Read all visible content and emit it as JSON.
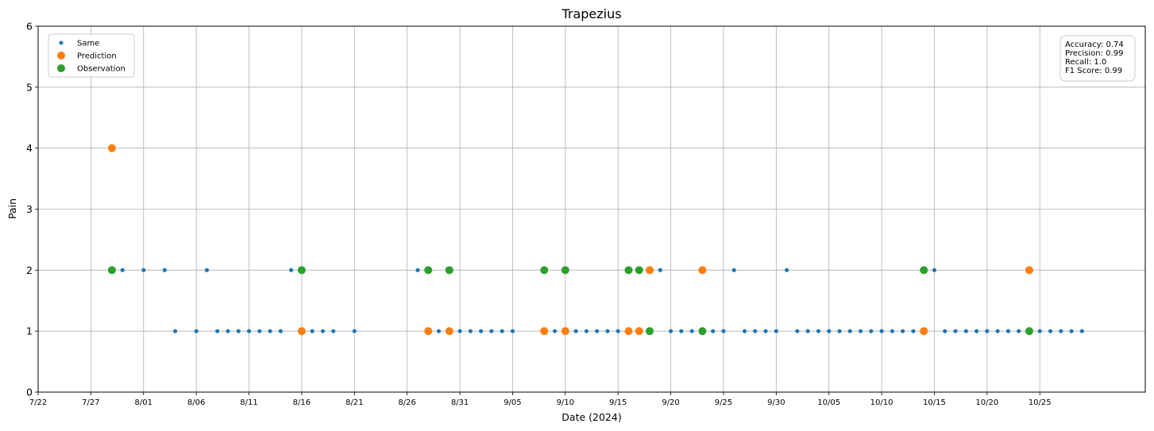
{
  "chart_data": {
    "type": "scatter",
    "title": "Trapezius",
    "xlabel": "Date (2024)",
    "ylabel": "Pain",
    "ylim": [
      0,
      6
    ],
    "yticks": [
      "0",
      "1",
      "2",
      "3",
      "4",
      "5",
      "6"
    ],
    "xlim": [
      "2024-07-22",
      "2024-11-04"
    ],
    "xticks": [
      "7/22",
      "7/27",
      "8/01",
      "8/06",
      "8/11",
      "8/16",
      "8/21",
      "8/26",
      "8/31",
      "9/05",
      "9/10",
      "9/15",
      "9/20",
      "9/25",
      "9/30",
      "10/05",
      "10/10",
      "10/15",
      "10/20",
      "10/25"
    ],
    "grid": true,
    "legend_position": "top-left",
    "metrics_box_position": "top-right",
    "metrics": [
      "Accuracy: 0.74",
      "Precision: 0.99",
      "Recall: 1.0",
      "F1 Score: 0.99"
    ],
    "series": [
      {
        "name": "Same",
        "color": "#1f77b4",
        "points": [
          [
            "2024-07-30",
            2
          ],
          [
            "2024-08-01",
            2
          ],
          [
            "2024-08-03",
            2
          ],
          [
            "2024-08-04",
            1
          ],
          [
            "2024-08-06",
            1
          ],
          [
            "2024-08-07",
            2
          ],
          [
            "2024-08-08",
            1
          ],
          [
            "2024-08-09",
            1
          ],
          [
            "2024-08-10",
            1
          ],
          [
            "2024-08-11",
            1
          ],
          [
            "2024-08-12",
            1
          ],
          [
            "2024-08-13",
            1
          ],
          [
            "2024-08-14",
            1
          ],
          [
            "2024-08-15",
            2
          ],
          [
            "2024-08-17",
            1
          ],
          [
            "2024-08-18",
            1
          ],
          [
            "2024-08-19",
            1
          ],
          [
            "2024-08-21",
            1
          ],
          [
            "2024-08-27",
            2
          ],
          [
            "2024-08-29",
            1
          ],
          [
            "2024-08-31",
            1
          ],
          [
            "2024-09-01",
            1
          ],
          [
            "2024-09-02",
            1
          ],
          [
            "2024-09-03",
            1
          ],
          [
            "2024-09-04",
            1
          ],
          [
            "2024-09-05",
            1
          ],
          [
            "2024-09-09",
            1
          ],
          [
            "2024-09-11",
            1
          ],
          [
            "2024-09-12",
            1
          ],
          [
            "2024-09-13",
            1
          ],
          [
            "2024-09-14",
            1
          ],
          [
            "2024-09-15",
            1
          ],
          [
            "2024-09-19",
            2
          ],
          [
            "2024-09-20",
            1
          ],
          [
            "2024-09-21",
            1
          ],
          [
            "2024-09-22",
            1
          ],
          [
            "2024-09-24",
            1
          ],
          [
            "2024-09-25",
            1
          ],
          [
            "2024-09-26",
            2
          ],
          [
            "2024-09-27",
            1
          ],
          [
            "2024-09-28",
            1
          ],
          [
            "2024-09-29",
            1
          ],
          [
            "2024-09-30",
            1
          ],
          [
            "2024-10-01",
            2
          ],
          [
            "2024-10-02",
            1
          ],
          [
            "2024-10-03",
            1
          ],
          [
            "2024-10-04",
            1
          ],
          [
            "2024-10-05",
            1
          ],
          [
            "2024-10-06",
            1
          ],
          [
            "2024-10-07",
            1
          ],
          [
            "2024-10-08",
            1
          ],
          [
            "2024-10-09",
            1
          ],
          [
            "2024-10-10",
            1
          ],
          [
            "2024-10-11",
            1
          ],
          [
            "2024-10-12",
            1
          ],
          [
            "2024-10-13",
            1
          ],
          [
            "2024-10-15",
            2
          ],
          [
            "2024-10-16",
            1
          ],
          [
            "2024-10-17",
            1
          ],
          [
            "2024-10-18",
            1
          ],
          [
            "2024-10-19",
            1
          ],
          [
            "2024-10-20",
            1
          ],
          [
            "2024-10-21",
            1
          ],
          [
            "2024-10-22",
            1
          ],
          [
            "2024-10-23",
            1
          ],
          [
            "2024-10-25",
            1
          ],
          [
            "2024-10-26",
            1
          ],
          [
            "2024-10-27",
            1
          ],
          [
            "2024-10-28",
            1
          ],
          [
            "2024-10-29",
            1
          ]
        ]
      },
      {
        "name": "Prediction",
        "color": "#ff7f0e",
        "points": [
          [
            "2024-07-29",
            4
          ],
          [
            "2024-08-16",
            1
          ],
          [
            "2024-08-28",
            1
          ],
          [
            "2024-08-30",
            1
          ],
          [
            "2024-09-08",
            1
          ],
          [
            "2024-09-10",
            1
          ],
          [
            "2024-09-16",
            1
          ],
          [
            "2024-09-17",
            1
          ],
          [
            "2024-09-18",
            2
          ],
          [
            "2024-09-23",
            2
          ],
          [
            "2024-10-14",
            1
          ],
          [
            "2024-10-24",
            2
          ]
        ]
      },
      {
        "name": "Observation",
        "color": "#2ca02c",
        "points": [
          [
            "2024-07-29",
            2
          ],
          [
            "2024-08-16",
            2
          ],
          [
            "2024-08-28",
            2
          ],
          [
            "2024-08-30",
            2
          ],
          [
            "2024-09-08",
            2
          ],
          [
            "2024-09-10",
            2
          ],
          [
            "2024-09-16",
            2
          ],
          [
            "2024-09-17",
            2
          ],
          [
            "2024-09-18",
            1
          ],
          [
            "2024-09-23",
            1
          ],
          [
            "2024-10-14",
            2
          ],
          [
            "2024-10-24",
            1
          ]
        ]
      }
    ]
  }
}
